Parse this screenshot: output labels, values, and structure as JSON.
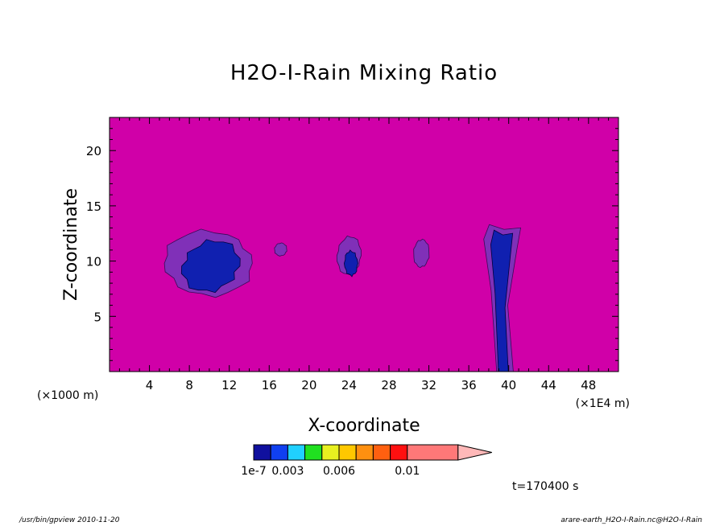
{
  "chart_data": {
    "type": "heatmap",
    "title": "H2O-I-Rain Mixing Ratio",
    "xlabel": "X-coordinate",
    "ylabel": "Z-coordinate",
    "x_unit_left": "(×1000 m)",
    "x_unit_right": "(×1E4 m)",
    "xlim": [
      0,
      51
    ],
    "ylim": [
      0,
      23
    ],
    "x_ticks": [
      4,
      8,
      12,
      16,
      20,
      24,
      28,
      32,
      36,
      40,
      44,
      48
    ],
    "y_ticks": [
      5,
      10,
      15,
      20
    ],
    "time_label": "t=170400 s",
    "background_color": "#d000a8",
    "colorbar": {
      "colors": [
        "#10109e",
        "#1040f0",
        "#20d0ff",
        "#20e020",
        "#e8f020",
        "#ffc800",
        "#ff9010",
        "#ff6010",
        "#ff1010",
        "#ff7878"
      ],
      "extend_color": "#ffb8b8",
      "tick_labels": [
        {
          "label": "1e-7",
          "index": 0
        },
        {
          "label": "0.003",
          "index": 2
        },
        {
          "label": "0.006",
          "index": 5
        },
        {
          "label": "0.01",
          "index": 9
        }
      ]
    },
    "cells": [
      {
        "name": "cell-x9",
        "outer": {
          "x": [
            5.3,
            14.5
          ],
          "z": [
            7.0,
            12.6
          ]
        },
        "core": {
          "x": [
            7.3,
            13.0
          ],
          "z": [
            7.3,
            11.8
          ]
        }
      },
      {
        "name": "cell-x17",
        "outer": {
          "x": [
            16.5,
            17.8
          ],
          "z": [
            10.5,
            11.6
          ]
        },
        "core": null
      },
      {
        "name": "cell-x24",
        "outer": {
          "x": [
            22.8,
            25.2
          ],
          "z": [
            8.8,
            12.2
          ]
        },
        "core": {
          "x": [
            23.6,
            24.8
          ],
          "z": [
            8.6,
            11.0
          ]
        }
      },
      {
        "name": "cell-x31",
        "outer": {
          "x": [
            30.5,
            32.0
          ],
          "z": [
            9.4,
            12.0
          ]
        },
        "core": null
      },
      {
        "name": "cell-x39",
        "outer": {
          "x": [
            37.5,
            41.2
          ],
          "z": [
            0,
            13.3
          ]
        },
        "core": {
          "x": [
            38.2,
            40.4
          ],
          "z": [
            0,
            12.8
          ]
        }
      }
    ]
  },
  "footer": {
    "left": "/usr/bin/gpview  2010-11-20",
    "right": "arare-earth_H2O-I-Rain.nc@H2O-I-Rain"
  }
}
